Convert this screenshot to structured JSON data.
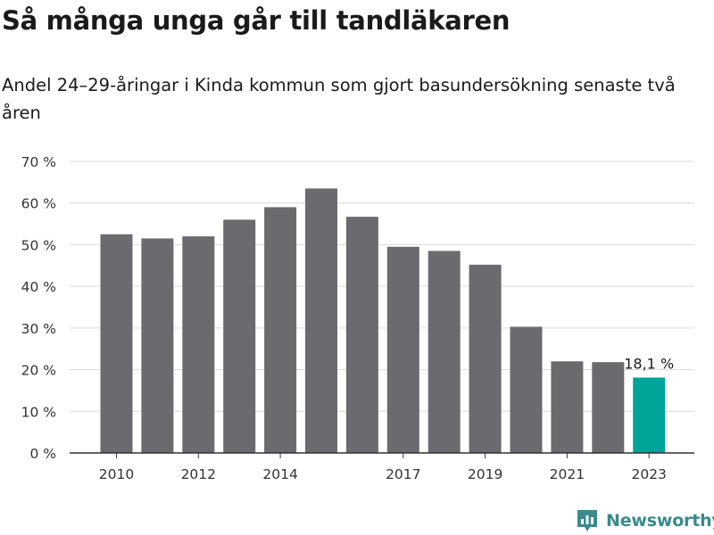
{
  "title": "Så många unga går till tandläkaren",
  "subtitle": "Andel 24–29-åringar i Kinda kommun som gjort basundersökning senaste två åren",
  "logo_text": "Newsworthy",
  "colors": {
    "bar": "#6b6a6f",
    "highlight": "#00a498",
    "grid": "#d9d9d9",
    "axis": "#333333",
    "logo": "#3a8a8c"
  },
  "chart_data": {
    "type": "bar",
    "x": [
      2010,
      2011,
      2012,
      2013,
      2014,
      2015,
      2016,
      2017,
      2018,
      2019,
      2020,
      2021,
      2022,
      2023
    ],
    "values": [
      52.5,
      51.5,
      52,
      56,
      59,
      63.5,
      56.7,
      49.5,
      48.5,
      45.2,
      30.3,
      22,
      21.8,
      18.1
    ],
    "x_tick_labels": [
      "2010",
      "2012",
      "2014",
      "2017",
      "2019",
      "2021",
      "2023"
    ],
    "y_tick_labels": [
      "0 %",
      "10 %",
      "20 %",
      "30 %",
      "40 %",
      "50 %",
      "60 %",
      "70 %"
    ],
    "y_ticks": [
      0,
      10,
      20,
      30,
      40,
      50,
      60,
      70
    ],
    "ylim": [
      0,
      70
    ],
    "highlight_index": 13,
    "data_label": "18,1 %",
    "grid": true
  }
}
